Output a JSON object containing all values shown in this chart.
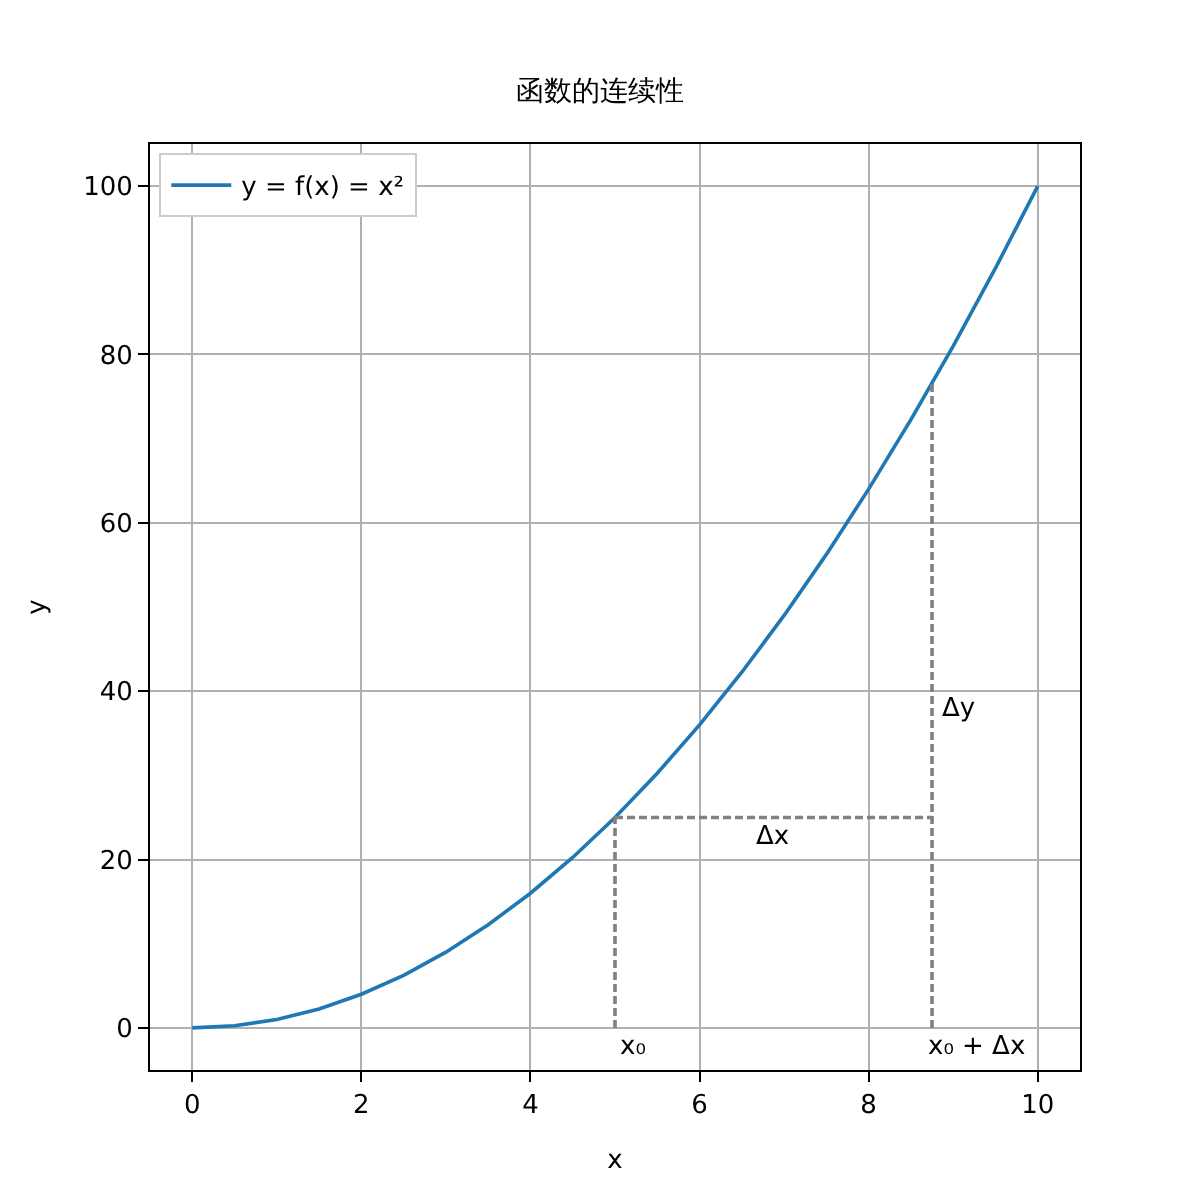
{
  "chart_data": {
    "type": "line",
    "title": "函数的连续性",
    "xlabel": "x",
    "ylabel": "y",
    "xlim": [
      -0.5,
      10.5
    ],
    "ylim": [
      -5,
      105
    ],
    "xticks": [
      0,
      2,
      4,
      6,
      8,
      10
    ],
    "yticks": [
      0,
      20,
      40,
      60,
      80,
      100
    ],
    "grid": true,
    "legend": "top left",
    "line_style": "solid",
    "marker": "none",
    "series": [
      {
        "name": "y = f(x) = x²",
        "color": "#1f77b4",
        "x": [
          0,
          0.5,
          1,
          1.5,
          2,
          2.5,
          3,
          3.5,
          4,
          4.5,
          5,
          5.5,
          6,
          6.5,
          7,
          7.5,
          8,
          8.5,
          9,
          9.5,
          10
        ],
        "values": [
          0,
          0.25,
          1,
          2.25,
          4,
          6.25,
          9,
          12.25,
          16,
          20.25,
          25,
          30.25,
          36,
          42.25,
          49,
          56.25,
          64,
          72.25,
          81,
          90.25,
          100
        ]
      },
      {
        "color": "#808080",
        "line_style": "dashed",
        "x": [
          5,
          5
        ],
        "values": [
          0,
          25
        ]
      },
      {
        "color": "#808080",
        "line_style": "dashed",
        "x": [
          5,
          8.75
        ],
        "values": [
          25,
          25
        ]
      },
      {
        "color": "#808080",
        "line_style": "dashed",
        "x": [
          8.75,
          8.75
        ],
        "values": [
          0,
          76.5
        ]
      }
    ],
    "annotations": [
      {
        "text": "x₀",
        "x": 5,
        "y": 0
      },
      {
        "text": "Δx",
        "x": 6.875,
        "y": 25
      },
      {
        "text": "Δy",
        "x": 8.75,
        "y": 38
      },
      {
        "text": "x₀ + Δx",
        "x": 8.75,
        "y": 0
      }
    ]
  }
}
